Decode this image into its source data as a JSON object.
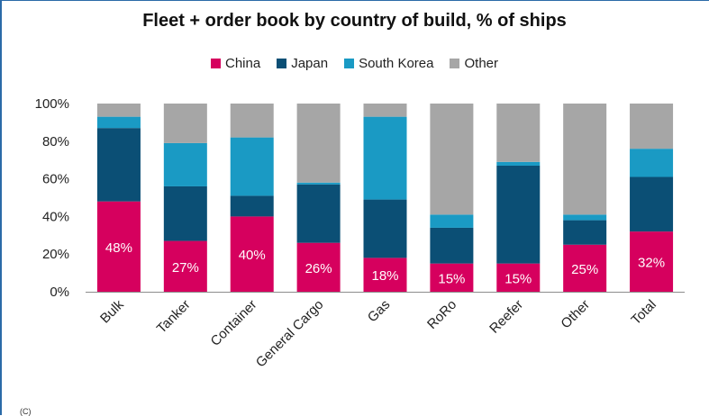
{
  "chart_data": {
    "type": "bar",
    "stacked": true,
    "title": "Fleet + order book by country of build, % of ships",
    "xlabel": "",
    "ylabel": "",
    "ylim": [
      0,
      100
    ],
    "yticks": [
      "0%",
      "20%",
      "40%",
      "60%",
      "80%",
      "100%"
    ],
    "legend_position": "top",
    "grid": false,
    "categories": [
      "Bulk",
      "Tanker",
      "Container",
      "General Cargo",
      "Gas",
      "RoRo",
      "Reefer",
      "Other",
      "Total"
    ],
    "series": [
      {
        "name": "China",
        "color": "#d6005e",
        "values": [
          48,
          27,
          40,
          26,
          18,
          15,
          15,
          25,
          32
        ],
        "labels": [
          "48%",
          "27%",
          "40%",
          "26%",
          "18%",
          "15%",
          "15%",
          "25%",
          "32%"
        ]
      },
      {
        "name": "Japan",
        "color": "#0b4f75",
        "values": [
          39,
          29,
          11,
          31,
          31,
          19,
          52,
          13,
          29
        ]
      },
      {
        "name": "South Korea",
        "color": "#1a9ac4",
        "values": [
          6,
          23,
          31,
          1,
          44,
          7,
          2,
          3,
          15
        ]
      },
      {
        "name": "Other",
        "color": "#a6a6a6",
        "values": [
          7,
          21,
          18,
          42,
          7,
          59,
          31,
          59,
          24
        ]
      }
    ]
  },
  "footer_text": "(C)"
}
